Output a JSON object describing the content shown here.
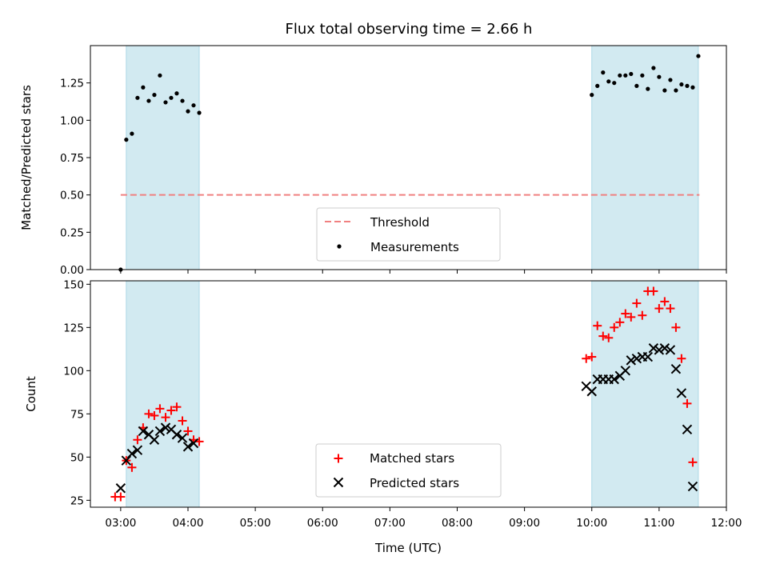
{
  "chart_data": {
    "title": "Flux total observing time = 2.66 h",
    "shared_x": {
      "label": "Time (UTC)",
      "unit": "hours UTC",
      "range": [
        2.55,
        12.0
      ],
      "ticks": [
        3,
        4,
        5,
        6,
        7,
        8,
        9,
        10,
        11,
        12
      ],
      "tick_labels": [
        "03:00",
        "04:00",
        "05:00",
        "06:00",
        "07:00",
        "08:00",
        "09:00",
        "10:00",
        "11:00",
        "12:00"
      ]
    },
    "shaded_intervals": {
      "color": "#add8e6",
      "spans": [
        [
          3.083,
          4.167
        ],
        [
          10.0,
          11.583
        ]
      ]
    },
    "panels": [
      {
        "type": "scatter",
        "ylabel": "Matched/Predicted stars",
        "ylim": [
          0,
          1.5
        ],
        "yticks": [
          0,
          0.25,
          0.5,
          0.75,
          1.0,
          1.25
        ],
        "ytick_labels": [
          "0.00",
          "0.25",
          "0.50",
          "0.75",
          "1.00",
          "1.25"
        ],
        "legend": "lower center",
        "threshold": {
          "name": "Threshold",
          "value": 0.5,
          "color": "#f08080",
          "x_range": [
            3.0,
            11.6
          ]
        },
        "series": [
          {
            "name": "Measurements",
            "color": "#000000",
            "marker": "dot",
            "points": [
              [
                3.0,
                0.0
              ],
              [
                3.083,
                0.87
              ],
              [
                3.167,
                0.91
              ],
              [
                3.25,
                1.15
              ],
              [
                3.333,
                1.22
              ],
              [
                3.417,
                1.13
              ],
              [
                3.5,
                1.17
              ],
              [
                3.583,
                1.3
              ],
              [
                3.667,
                1.12
              ],
              [
                3.75,
                1.15
              ],
              [
                3.833,
                1.18
              ],
              [
                3.917,
                1.13
              ],
              [
                4.0,
                1.06
              ],
              [
                4.083,
                1.1
              ],
              [
                4.167,
                1.05
              ],
              [
                10.0,
                1.17
              ],
              [
                10.083,
                1.23
              ],
              [
                10.167,
                1.32
              ],
              [
                10.25,
                1.26
              ],
              [
                10.333,
                1.25
              ],
              [
                10.417,
                1.3
              ],
              [
                10.5,
                1.3
              ],
              [
                10.583,
                1.31
              ],
              [
                10.667,
                1.23
              ],
              [
                10.75,
                1.3
              ],
              [
                10.833,
                1.21
              ],
              [
                10.917,
                1.35
              ],
              [
                11.0,
                1.29
              ],
              [
                11.083,
                1.2
              ],
              [
                11.167,
                1.27
              ],
              [
                11.25,
                1.2
              ],
              [
                11.333,
                1.24
              ],
              [
                11.417,
                1.23
              ],
              [
                11.5,
                1.22
              ],
              [
                11.583,
                1.43
              ]
            ]
          }
        ]
      },
      {
        "type": "scatter",
        "ylabel": "Count",
        "ylim": [
          21,
          152
        ],
        "yticks": [
          25,
          50,
          75,
          100,
          125,
          150
        ],
        "ytick_labels": [
          "25",
          "50",
          "75",
          "100",
          "125",
          "150"
        ],
        "legend": "lower center",
        "series": [
          {
            "name": "Matched stars",
            "color": "#ff0000",
            "marker": "plus",
            "points": [
              [
                2.917,
                27
              ],
              [
                3.0,
                27
              ],
              [
                3.083,
                48
              ],
              [
                3.167,
                44
              ],
              [
                3.25,
                60
              ],
              [
                3.333,
                67
              ],
              [
                3.417,
                75
              ],
              [
                3.5,
                74
              ],
              [
                3.583,
                78
              ],
              [
                3.667,
                73
              ],
              [
                3.75,
                77
              ],
              [
                3.833,
                79
              ],
              [
                3.917,
                71
              ],
              [
                4.0,
                65
              ],
              [
                4.083,
                60
              ],
              [
                4.167,
                59
              ],
              [
                9.917,
                107
              ],
              [
                10.0,
                108
              ],
              [
                10.083,
                126
              ],
              [
                10.167,
                120
              ],
              [
                10.25,
                119
              ],
              [
                10.333,
                125
              ],
              [
                10.417,
                128
              ],
              [
                10.5,
                133
              ],
              [
                10.583,
                131
              ],
              [
                10.667,
                139
              ],
              [
                10.75,
                132
              ],
              [
                10.833,
                146
              ],
              [
                10.917,
                146
              ],
              [
                11.0,
                136
              ],
              [
                11.083,
                140
              ],
              [
                11.167,
                136
              ],
              [
                11.25,
                125
              ],
              [
                11.333,
                107
              ],
              [
                11.417,
                81
              ],
              [
                11.5,
                47
              ]
            ]
          },
          {
            "name": "Predicted stars",
            "color": "#000000",
            "marker": "x",
            "points": [
              [
                3.0,
                32
              ],
              [
                3.083,
                48
              ],
              [
                3.167,
                52
              ],
              [
                3.25,
                54
              ],
              [
                3.333,
                65
              ],
              [
                3.417,
                63
              ],
              [
                3.5,
                60
              ],
              [
                3.583,
                65
              ],
              [
                3.667,
                67
              ],
              [
                3.75,
                66
              ],
              [
                3.833,
                63
              ],
              [
                3.917,
                61
              ],
              [
                4.0,
                56
              ],
              [
                4.083,
                58
              ],
              [
                9.917,
                91
              ],
              [
                10.0,
                88
              ],
              [
                10.083,
                95
              ],
              [
                10.167,
                95
              ],
              [
                10.25,
                95
              ],
              [
                10.333,
                95
              ],
              [
                10.417,
                97
              ],
              [
                10.5,
                100
              ],
              [
                10.583,
                106
              ],
              [
                10.667,
                107
              ],
              [
                10.75,
                108
              ],
              [
                10.833,
                108
              ],
              [
                10.917,
                113
              ],
              [
                11.0,
                112
              ],
              [
                11.083,
                113
              ],
              [
                11.167,
                112
              ],
              [
                11.25,
                101
              ],
              [
                11.333,
                87
              ],
              [
                11.417,
                66
              ],
              [
                11.5,
                33
              ]
            ]
          }
        ]
      }
    ]
  }
}
